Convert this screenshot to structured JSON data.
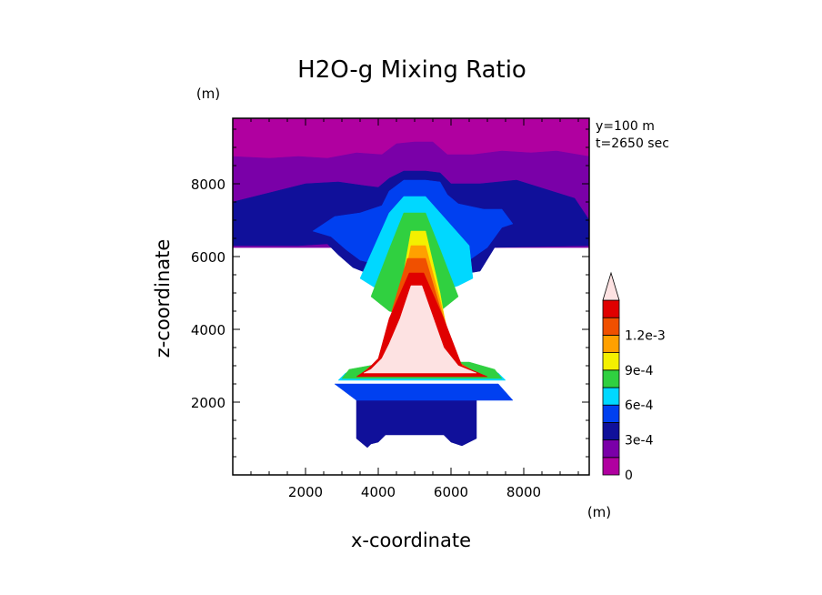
{
  "chart_data": {
    "type": "heatmap",
    "title": "H2O-g Mixing Ratio",
    "xlabel": "x-coordinate",
    "ylabel": "z-coordinate",
    "x_unit": "(m)",
    "y_unit": "(m)",
    "annotations": [
      "y=100 m",
      "t=2650 sec"
    ],
    "xlim": [
      0,
      9800
    ],
    "ylim": [
      0,
      9800
    ],
    "x_ticks": [
      2000,
      4000,
      6000,
      8000
    ],
    "y_ticks": [
      2000,
      4000,
      6000,
      8000
    ],
    "x_tick_labels": [
      "2000",
      "4000",
      "6000",
      "8000"
    ],
    "y_tick_labels": [
      "2000",
      "4000",
      "6000",
      "8000"
    ],
    "colorbar": {
      "levels": [
        0,
        0.00015,
        0.0003,
        0.00045,
        0.0006,
        0.00075,
        0.0009,
        0.00105,
        0.0012,
        0.00135
      ],
      "colors": [
        "#b000a0",
        "#7a00a8",
        "#10109a",
        "#0040f0",
        "#00d8ff",
        "#30d040",
        "#f4f000",
        "#ffa000",
        "#f05000",
        "#e00000",
        "#fde2e2"
      ],
      "tick_values": [
        0,
        0.0003,
        0.0006,
        0.0009,
        0.0012
      ],
      "tick_labels": [
        "0",
        "3e-4",
        "6e-4",
        "9e-4",
        "1.2e-3"
      ],
      "extend": "max"
    },
    "regions": [
      {
        "level_index": 0,
        "x": [
          0,
          9800,
          9800,
          0
        ],
        "y": [
          6250,
          6250,
          9800,
          9800
        ]
      },
      {
        "level_index": 1,
        "x": [
          0,
          9800,
          9800,
          8900,
          8200,
          7400,
          6600,
          5900,
          5500,
          5000,
          4500,
          4100,
          3400,
          2600,
          1800,
          1000,
          0
        ],
        "y": [
          6250,
          6250,
          8750,
          8900,
          8850,
          8900,
          8800,
          8800,
          9150,
          9150,
          9100,
          8800,
          8850,
          8700,
          8750,
          8700,
          8750
        ]
      },
      {
        "level_index": 2,
        "x": [
          0,
          1800,
          2600,
          2900,
          3300,
          3800,
          6200,
          6800,
          7200,
          9800,
          9800,
          9400,
          7800,
          6800,
          6400,
          6000,
          5700,
          5300,
          4700,
          4300,
          4000,
          3600,
          2900,
          2000,
          1000,
          0
        ],
        "y": [
          6300,
          6300,
          6350,
          6050,
          5700,
          5500,
          5500,
          5600,
          6250,
          6300,
          7000,
          7600,
          8100,
          8000,
          8000,
          8000,
          8300,
          8350,
          8350,
          8150,
          7900,
          7950,
          8050,
          8000,
          7750,
          7500
        ]
      },
      {
        "level_index": 2,
        "x": [
          3400,
          3700,
          3800,
          4000,
          4200,
          5800,
          6000,
          6300,
          6700,
          6700,
          6400,
          3400
        ],
        "y": [
          1000,
          750,
          850,
          900,
          1100,
          1100,
          900,
          800,
          1000,
          2050,
          2200,
          2200
        ]
      },
      {
        "level_index": 3,
        "x": [
          2200,
          2700,
          3100,
          3500,
          3900,
          4200,
          4600,
          5200,
          5700,
          6000,
          6500,
          7000,
          7400,
          7700,
          7400,
          6900,
          6200,
          5900,
          5700,
          5300,
          4700,
          4300,
          4100,
          3500,
          2800
        ],
        "y": [
          6700,
          6550,
          6200,
          5900,
          5800,
          5900,
          5700,
          5700,
          5900,
          5800,
          5900,
          6250,
          6800,
          6900,
          7300,
          7300,
          7450,
          7700,
          8050,
          8100,
          8100,
          7800,
          7400,
          7200,
          7100
        ]
      },
      {
        "level_index": 3,
        "x": [
          3400,
          7700,
          7300,
          2800
        ],
        "y": [
          2050,
          2050,
          2500,
          2500
        ]
      },
      {
        "level_index": 4,
        "x": [
          3500,
          3900,
          4100,
          4300,
          4700,
          5300,
          5700,
          5900,
          6200,
          6600,
          6500,
          5700,
          5300,
          4700,
          4300
        ],
        "y": [
          5400,
          5150,
          5000,
          4900,
          4800,
          4800,
          4900,
          5100,
          5200,
          5400,
          6300,
          7200,
          7650,
          7650,
          7200
        ]
      },
      {
        "level_index": 4,
        "x": [
          2900,
          7500,
          7300,
          6700,
          4300,
          3100
        ],
        "y": [
          2600,
          2600,
          2800,
          2950,
          2950,
          2800
        ]
      },
      {
        "level_index": 5,
        "x": [
          3800,
          4300,
          4700,
          5300,
          5700,
          6200,
          5700,
          5300,
          4700,
          4300
        ],
        "y": [
          4900,
          4500,
          4400,
          4400,
          4500,
          4900,
          6200,
          7200,
          7200,
          6200
        ]
      },
      {
        "level_index": 5,
        "x": [
          3000,
          7400,
          7200,
          6500,
          4300,
          3200
        ],
        "y": [
          2650,
          2650,
          2900,
          3100,
          3100,
          2900
        ]
      },
      {
        "level_index": 6,
        "x": [
          3900,
          6100,
          6000,
          5700,
          5300,
          4900,
          4600,
          4300,
          4000
        ],
        "y": [
          2900,
          2900,
          3300,
          5000,
          6700,
          6700,
          5000,
          3300,
          3200
        ]
      },
      {
        "level_index": 7,
        "x": [
          3600,
          6600,
          6100,
          5700,
          5300,
          4900,
          4600,
          4300,
          3900
        ],
        "y": [
          2800,
          2800,
          3200,
          4800,
          6300,
          6300,
          4800,
          3200,
          3000
        ]
      },
      {
        "level_index": 8,
        "x": [
          3500,
          6800,
          6200,
          5700,
          5300,
          4800,
          4400,
          4100,
          3800
        ],
        "y": [
          2750,
          2750,
          3100,
          4600,
          5950,
          5950,
          4600,
          3200,
          3000
        ]
      },
      {
        "level_index": 9,
        "x": [
          3400,
          7000,
          6300,
          5800,
          5250,
          4850,
          4300,
          4000,
          3700
        ],
        "y": [
          2700,
          2700,
          3000,
          4300,
          5550,
          5550,
          4300,
          3200,
          2900
        ]
      },
      {
        "level_index": 10,
        "x": [
          3600,
          6700,
          6200,
          5800,
          5200,
          4900,
          4600,
          4300,
          4100,
          3800
        ],
        "y": [
          2800,
          2800,
          3000,
          3500,
          5200,
          5200,
          4300,
          3600,
          3200,
          2900
        ]
      }
    ]
  }
}
